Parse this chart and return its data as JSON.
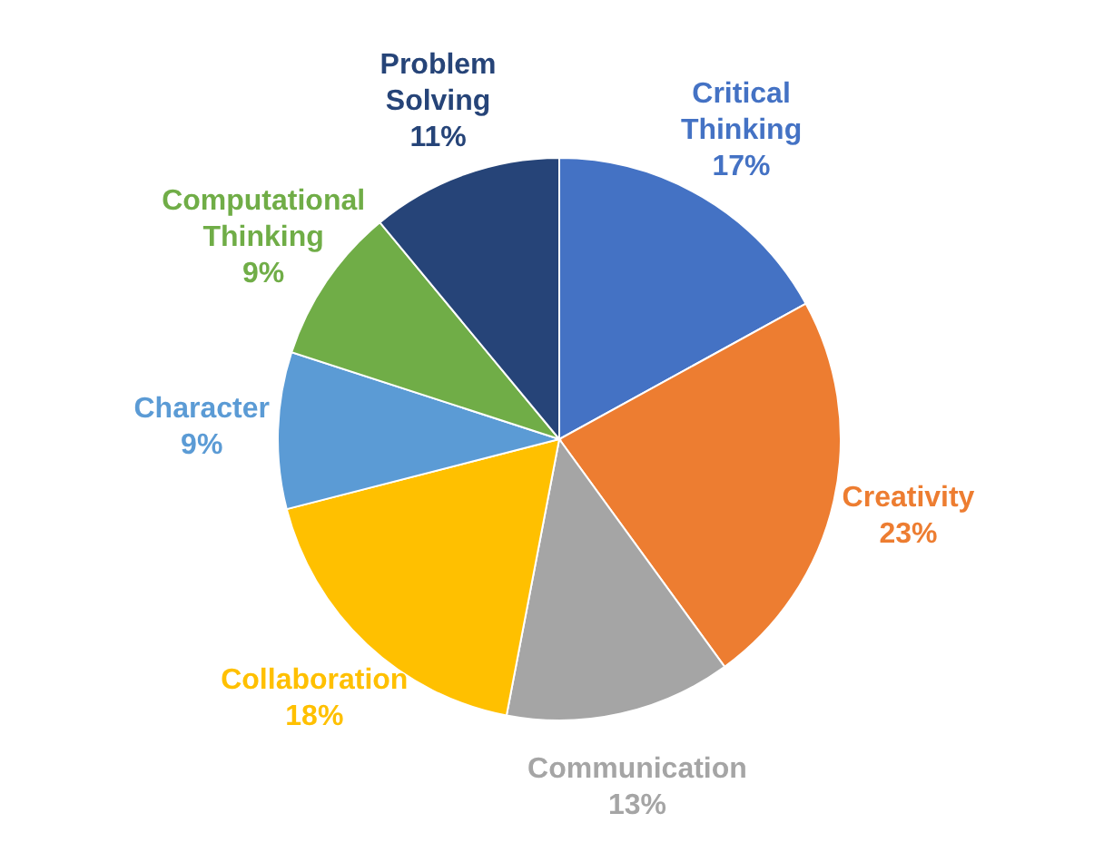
{
  "chart_data": {
    "type": "pie",
    "categories": [
      "Critical Thinking",
      "Creativity",
      "Communication",
      "Collaboration",
      "Character",
      "Computational Thinking",
      "Problem Solving"
    ],
    "values": [
      17,
      23,
      13,
      18,
      9,
      9,
      11
    ],
    "value_labels": [
      "17%",
      "23%",
      "13%",
      "18%",
      "9%",
      "9%",
      "11%"
    ],
    "colors": [
      "#4472c4",
      "#ed7d31",
      "#a5a5a5",
      "#ffc000",
      "#5b9bd5",
      "#70ad47",
      "#264478"
    ]
  }
}
